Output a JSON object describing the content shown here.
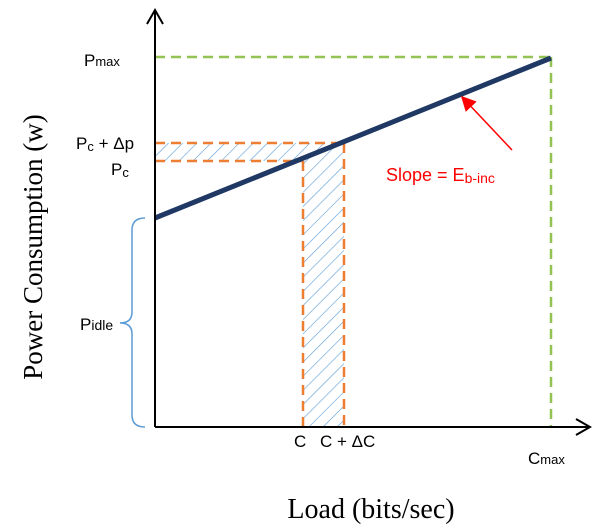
{
  "labels": {
    "y_axis": "Power Consumption (w)",
    "x_axis": "Load (bits/sec)",
    "pmax_main": "P",
    "pmax_sub": "max",
    "pcdp_main": "P",
    "pcdp_sub": "c",
    "pcdp_rest": " + Δp",
    "pc_main": "P",
    "pc_sub": "c",
    "pidle_main": "P",
    "pidle_sub": "idle",
    "c": "C",
    "c_dc": "C + ΔC",
    "cmax_main": "C",
    "cmax_sub": "max",
    "slope_main": "Slope = E",
    "slope_sub": "b-inc"
  },
  "colors": {
    "axis": "#000000",
    "line": "#1f3864",
    "green_dash": "#92c353",
    "orange_dash": "#ed7d31",
    "hatch": "#5b9bd5",
    "brace": "#5b9bd5",
    "annotation": "#ff0000"
  }
}
